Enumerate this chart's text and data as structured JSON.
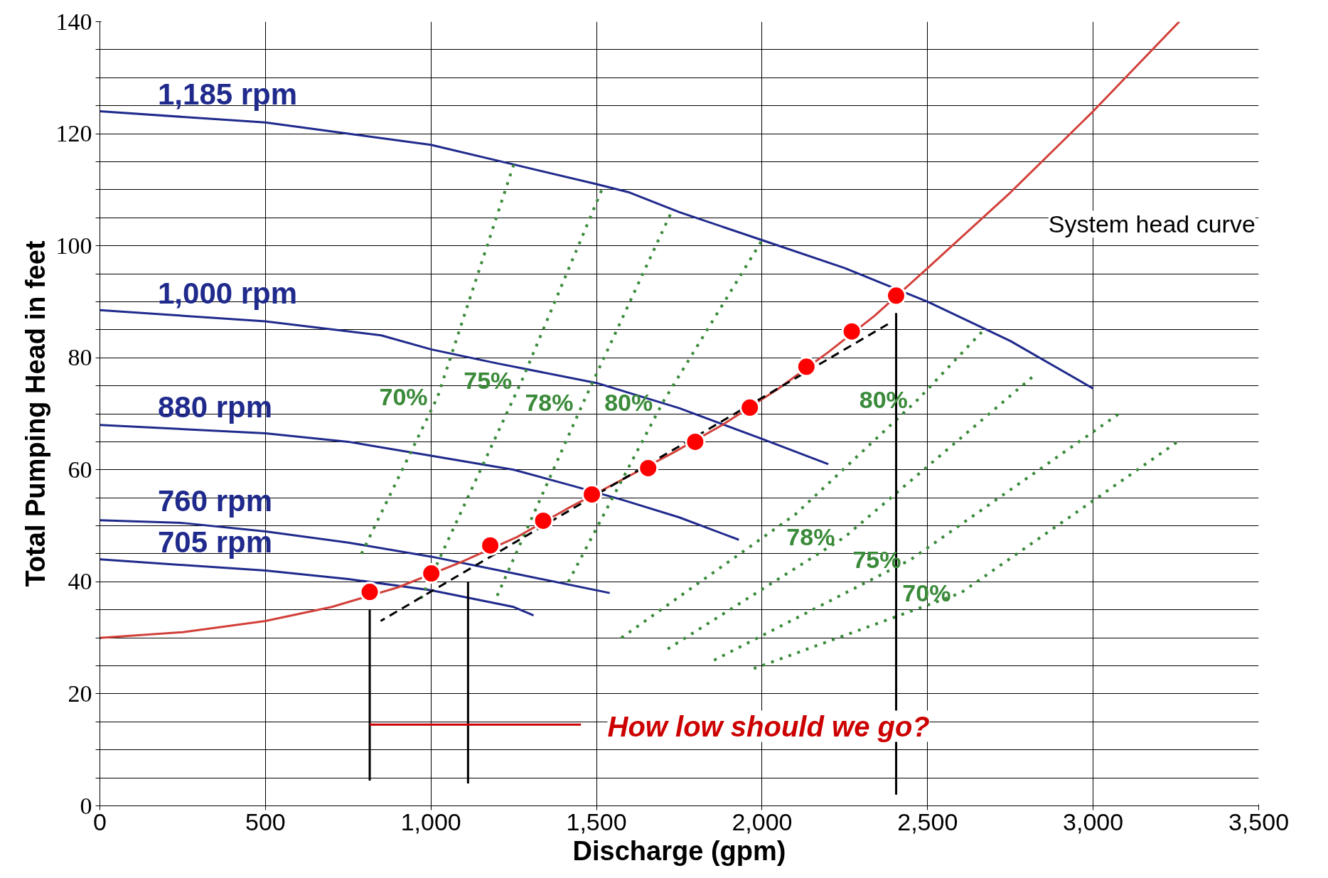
{
  "chart_data": {
    "type": "line",
    "xlabel": "Discharge (gpm)",
    "ylabel": "Total Pumping Head in feet",
    "xlim": [
      0,
      3500
    ],
    "xticks": [
      {
        "value": 0,
        "label": "0"
      },
      {
        "value": 500,
        "label": "500"
      },
      {
        "value": 1000,
        "label": "1,000"
      },
      {
        "value": 1500,
        "label": "1,500"
      },
      {
        "value": 2000,
        "label": "2,000"
      },
      {
        "value": 2500,
        "label": "2,500"
      },
      {
        "value": 3000,
        "label": "3,000"
      },
      {
        "value": 3500,
        "label": "3,500"
      }
    ],
    "ylim": [
      0,
      140
    ],
    "yticks": [
      0,
      {
        "value": 5,
        "label": null
      },
      {
        "value": 10,
        "label": null
      },
      {
        "value": 15,
        "label": null
      },
      20,
      {
        "value": 25,
        "label": null
      },
      {
        "value": 30,
        "label": null
      },
      {
        "value": 35,
        "label": null
      },
      40,
      {
        "value": 45,
        "label": null
      },
      {
        "value": 50,
        "label": null
      },
      {
        "value": 55,
        "label": null
      },
      60,
      {
        "value": 65,
        "label": null
      },
      {
        "value": 70,
        "label": null
      },
      {
        "value": 75,
        "label": null
      },
      80,
      {
        "value": 85,
        "label": null
      },
      {
        "value": 90,
        "label": null
      },
      {
        "value": 95,
        "label": null
      },
      100,
      {
        "value": 105,
        "label": null
      },
      {
        "value": 110,
        "label": null
      },
      {
        "value": 115,
        "label": null
      },
      120,
      {
        "value": 125,
        "label": null
      },
      {
        "value": 130,
        "label": null
      },
      {
        "value": 135,
        "label": null
      },
      140
    ],
    "grid": true,
    "series": [
      {
        "name": "1,185 rpm",
        "color": "#1f2a8c",
        "x": [
          0,
          500,
          750,
          1000,
          1250,
          1500,
          1600,
          1750,
          2000,
          2250,
          2500,
          2750,
          3000
        ],
        "values": [
          124,
          122,
          120,
          118,
          114.5,
          111,
          109.5,
          106,
          101,
          96,
          90,
          83,
          74.5
        ]
      },
      {
        "name": "1,000 rpm",
        "color": "#1f2a8c",
        "x": [
          0,
          500,
          850,
          1000,
          1200,
          1500,
          1750,
          2000,
          2200
        ],
        "values": [
          88.5,
          86.5,
          84,
          81.5,
          79,
          75.5,
          71,
          65.5,
          61
        ]
      },
      {
        "name": "880 rpm",
        "color": "#1f2a8c",
        "x": [
          0,
          500,
          750,
          1000,
          1250,
          1430,
          1580,
          1750,
          1930
        ],
        "values": [
          68,
          66.5,
          65,
          62.5,
          60,
          57.1,
          54.6,
          51.5,
          47.5
        ]
      },
      {
        "name": "760 rpm",
        "color": "#1f2a8c",
        "x": [
          0,
          250,
          500,
          750,
          1000,
          1250,
          1540
        ],
        "values": [
          51,
          50.5,
          49,
          47,
          44.5,
          41.5,
          38
        ]
      },
      {
        "name": "705 rpm",
        "color": "#1f2a8c",
        "x": [
          0,
          500,
          750,
          1000,
          1250,
          1310
        ],
        "values": [
          44,
          42,
          40.5,
          38.5,
          35.5,
          34
        ]
      },
      {
        "name": "System head curve",
        "color": "#d2403a",
        "x": [
          0,
          250,
          500,
          700,
          900,
          1090,
          1260,
          1410,
          1570,
          1730,
          1880,
          2050,
          2200,
          2340,
          2500,
          2750,
          3000,
          3260
        ],
        "values": [
          30,
          31,
          33,
          35.5,
          39,
          43.5,
          48,
          53,
          58,
          63,
          68,
          74.5,
          81,
          87.5,
          96,
          109.5,
          124,
          140
        ]
      },
      {
        "name": "70%",
        "color": "#3a8a3a",
        "line_style": "dotted",
        "x": [
          790,
          1020,
          1250
        ],
        "values": [
          45,
          73,
          114.5
        ]
      },
      {
        "name": "75%",
        "color": "#3a8a3a",
        "line_style": "dotted",
        "x": [
          970,
          1275,
          1516
        ],
        "values": [
          37,
          76,
          110
        ]
      },
      {
        "name": "78%",
        "color": "#3a8a3a",
        "line_style": "dotted",
        "x": [
          1200,
          1460,
          1730
        ],
        "values": [
          37.5,
          72,
          106.5
        ]
      },
      {
        "name": "80%",
        "color": "#3a8a3a",
        "line_style": "dotted",
        "x": [
          1415,
          1700,
          2000
        ],
        "values": [
          40,
          72,
          101
        ]
      },
      {
        "name": "80%",
        "color": "#3a8a3a",
        "line_style": "dotted",
        "x": [
          1575,
          2100,
          2470,
          2670
        ],
        "values": [
          30,
          52,
          72.5,
          85
        ]
      },
      {
        "name": "78%",
        "color": "#3a8a3a",
        "line_style": "dotted",
        "x": [
          1715,
          2250,
          2825
        ],
        "values": [
          28,
          48,
          77
        ]
      },
      {
        "name": "75%",
        "color": "#3a8a3a",
        "line_style": "dotted",
        "x": [
          1855,
          2450,
          3090
        ],
        "values": [
          26,
          44,
          70.5
        ]
      },
      {
        "name": "70%",
        "color": "#3a8a3a",
        "line_style": "dotted",
        "x": [
          1975,
          2600,
          3255
        ],
        "values": [
          24.5,
          38,
          65
        ]
      },
      {
        "color": "#000000",
        "line_style": "dashed",
        "x": [
          2380,
          848
        ],
        "values": [
          86,
          33
        ]
      },
      {
        "color": "#000000",
        "x": [
          815,
          815
        ],
        "values": [
          35,
          4.5
        ]
      },
      {
        "color": "#000000",
        "x": [
          1112,
          1112
        ],
        "values": [
          40,
          4
        ]
      },
      {
        "color": "#000000",
        "x": [
          2405,
          2405
        ],
        "values": [
          88,
          2
        ]
      },
      {
        "color": "#cc0000",
        "x": [
          1453,
          815
        ],
        "values": [
          14.5,
          14.5
        ]
      },
      {
        "type": "scatter",
        "marker": "circle",
        "color": "#ff0000",
        "x": [
          815,
          1001,
          1179,
          1339,
          1486,
          1656,
          1798,
          1963,
          2134,
          2271,
          2405
        ],
        "values": [
          38.2,
          41.5,
          46.5,
          50.9,
          55.6,
          60.3,
          65,
          71.1,
          78.4,
          84.7,
          91.1
        ]
      }
    ],
    "annotations": [
      "How low should we go?"
    ]
  }
}
